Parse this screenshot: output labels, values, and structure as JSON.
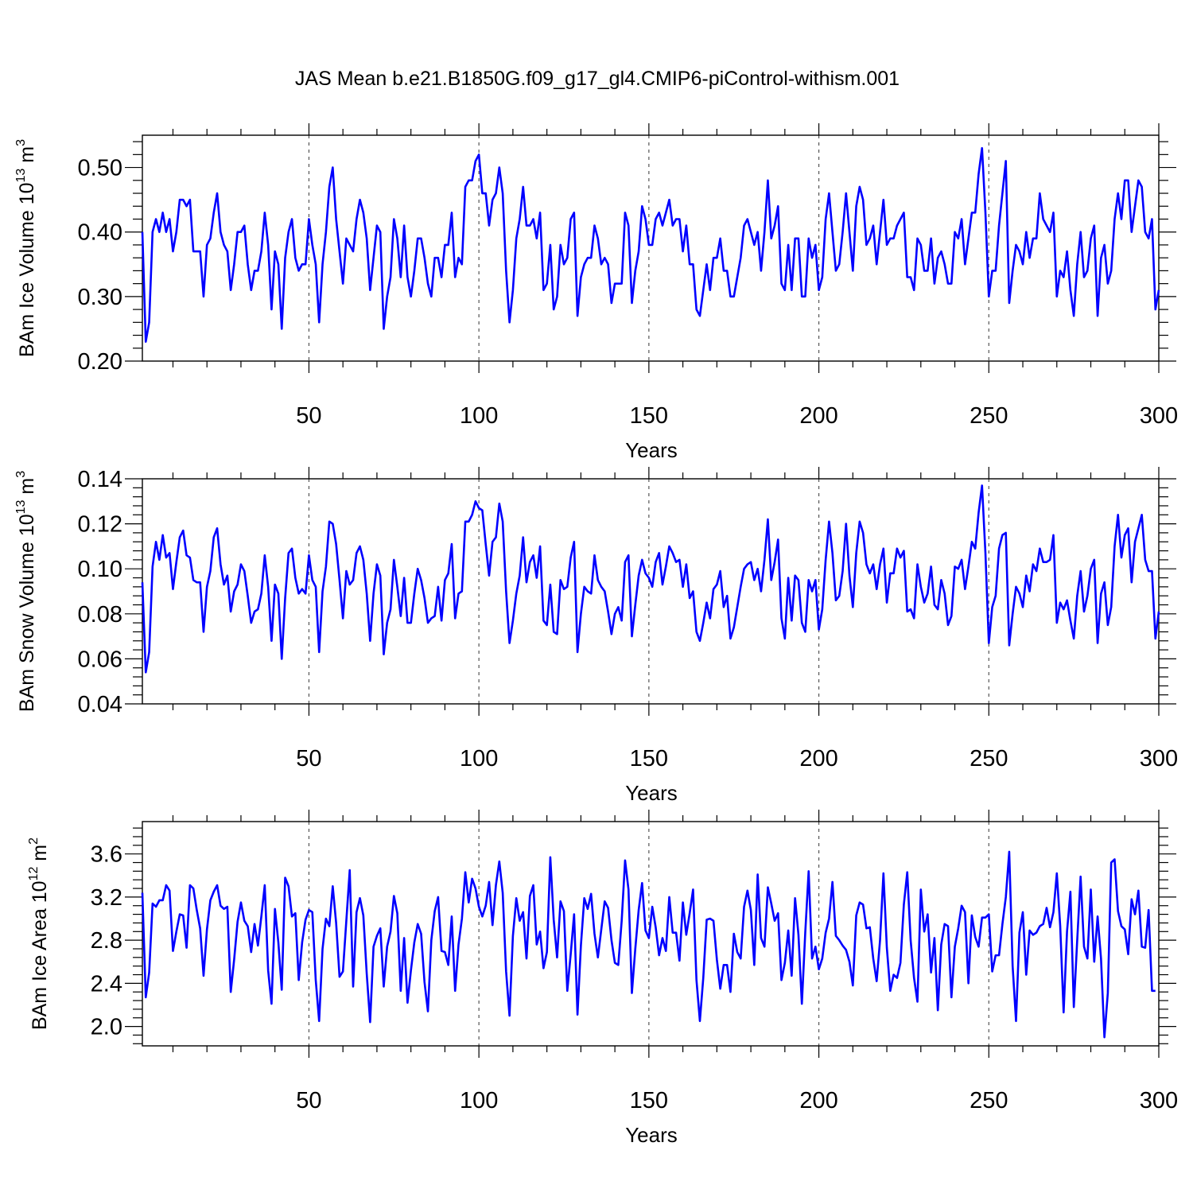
{
  "title": "JAS Mean b.e21.B1850G.f09_g17_gl4.CMIP6-piControl-withism.001",
  "colors": {
    "series": "#0000ff",
    "axis": "#000000",
    "refline": "#555555"
  },
  "chart_data": [
    {
      "type": "line",
      "ylabel": {
        "prefix": "BAm Ice Volume 10",
        "exp": "13",
        "unit": " m",
        "unit_exp": "3"
      },
      "xlabel": "Years",
      "xlim": [
        1,
        300
      ],
      "ylim": [
        0.2,
        0.55
      ],
      "xticks": [
        "50",
        "100",
        "150",
        "200",
        "250",
        "300"
      ],
      "yticks": [
        "0.20",
        "0.30",
        "0.40",
        "0.50"
      ],
      "ref_lines_x": [
        50,
        100,
        150,
        200,
        250
      ],
      "x_start": 1,
      "values": [
        0.4,
        0.23,
        0.26,
        0.4,
        0.42,
        0.4,
        0.43,
        0.4,
        0.42,
        0.37,
        0.4,
        0.45,
        0.45,
        0.44,
        0.45,
        0.37,
        0.37,
        0.37,
        0.3,
        0.38,
        0.39,
        0.43,
        0.46,
        0.4,
        0.38,
        0.37,
        0.31,
        0.35,
        0.4,
        0.4,
        0.41,
        0.35,
        0.31,
        0.34,
        0.34,
        0.37,
        0.43,
        0.38,
        0.28,
        0.37,
        0.35,
        0.25,
        0.36,
        0.4,
        0.42,
        0.36,
        0.34,
        0.35,
        0.35,
        0.42,
        0.38,
        0.35,
        0.26,
        0.35,
        0.4,
        0.47,
        0.5,
        0.42,
        0.37,
        0.32,
        0.39,
        0.38,
        0.37,
        0.42,
        0.45,
        0.43,
        0.39,
        0.31,
        0.36,
        0.41,
        0.4,
        0.25,
        0.3,
        0.33,
        0.42,
        0.39,
        0.33,
        0.41,
        0.33,
        0.3,
        0.34,
        0.39,
        0.39,
        0.36,
        0.32,
        0.3,
        0.36,
        0.36,
        0.33,
        0.38,
        0.38,
        0.43,
        0.33,
        0.36,
        0.35,
        0.47,
        0.48,
        0.48,
        0.51,
        0.52,
        0.46,
        0.46,
        0.41,
        0.45,
        0.46,
        0.5,
        0.46,
        0.34,
        0.26,
        0.31,
        0.39,
        0.42,
        0.47,
        0.41,
        0.41,
        0.42,
        0.39,
        0.43,
        0.31,
        0.32,
        0.38,
        0.28,
        0.3,
        0.38,
        0.35,
        0.36,
        0.42,
        0.43,
        0.27,
        0.33,
        0.35,
        0.36,
        0.36,
        0.41,
        0.39,
        0.35,
        0.36,
        0.35,
        0.29,
        0.32,
        0.32,
        0.32,
        0.43,
        0.41,
        0.29,
        0.34,
        0.37,
        0.44,
        0.42,
        0.38,
        0.38,
        0.42,
        0.43,
        0.41,
        0.43,
        0.45,
        0.41,
        0.42,
        0.42,
        0.37,
        0.41,
        0.35,
        0.35,
        0.28,
        0.27,
        0.31,
        0.35,
        0.31,
        0.36,
        0.36,
        0.39,
        0.34,
        0.34,
        0.3,
        0.3,
        0.33,
        0.36,
        0.41,
        0.42,
        0.4,
        0.38,
        0.4,
        0.34,
        0.4,
        0.48,
        0.39,
        0.41,
        0.44,
        0.32,
        0.31,
        0.38,
        0.31,
        0.39,
        0.39,
        0.3,
        0.3,
        0.39,
        0.36,
        0.38,
        0.31,
        0.33,
        0.42,
        0.46,
        0.4,
        0.34,
        0.35,
        0.4,
        0.46,
        0.4,
        0.34,
        0.44,
        0.47,
        0.45,
        0.38,
        0.39,
        0.41,
        0.35,
        0.4,
        0.45,
        0.38,
        0.39,
        0.39,
        0.41,
        0.42,
        0.43,
        0.33,
        0.33,
        0.31,
        0.39,
        0.38,
        0.34,
        0.34,
        0.39,
        0.32,
        0.36,
        0.37,
        0.35,
        0.32,
        0.32,
        0.4,
        0.39,
        0.42,
        0.35,
        0.39,
        0.43,
        0.43,
        0.49,
        0.53,
        0.43,
        0.3,
        0.34,
        0.34,
        0.41,
        0.46,
        0.51,
        0.29,
        0.34,
        0.38,
        0.37,
        0.35,
        0.4,
        0.36,
        0.39,
        0.39,
        0.46,
        0.42,
        0.41,
        0.4,
        0.43,
        0.3,
        0.34,
        0.33,
        0.37,
        0.31,
        0.27,
        0.35,
        0.4,
        0.33,
        0.34,
        0.39,
        0.41,
        0.27,
        0.36,
        0.38,
        0.32,
        0.34,
        0.42,
        0.46,
        0.42,
        0.48,
        0.48,
        0.4,
        0.44,
        0.48,
        0.47,
        0.4,
        0.39,
        0.42,
        0.28,
        0.31
      ]
    },
    {
      "type": "line",
      "ylabel": {
        "prefix": "BAm Snow Volume 10",
        "exp": "13",
        "unit": " m",
        "unit_exp": "3"
      },
      "xlabel": "Years",
      "xlim": [
        1,
        300
      ],
      "ylim": [
        0.04,
        0.14
      ],
      "xticks": [
        "50",
        "100",
        "150",
        "200",
        "250",
        "300"
      ],
      "yticks": [
        "0.04",
        "0.06",
        "0.08",
        "0.10",
        "0.12",
        "0.14"
      ],
      "ref_lines_x": [
        50,
        100,
        150,
        200,
        250
      ],
      "x_start": 1,
      "values": [
        0.094,
        0.054,
        0.063,
        0.101,
        0.112,
        0.104,
        0.115,
        0.105,
        0.107,
        0.091,
        0.103,
        0.114,
        0.117,
        0.106,
        0.105,
        0.095,
        0.094,
        0.094,
        0.072,
        0.092,
        0.099,
        0.114,
        0.118,
        0.102,
        0.093,
        0.097,
        0.081,
        0.09,
        0.093,
        0.102,
        0.099,
        0.088,
        0.076,
        0.081,
        0.082,
        0.089,
        0.106,
        0.092,
        0.068,
        0.093,
        0.089,
        0.06,
        0.087,
        0.107,
        0.109,
        0.096,
        0.089,
        0.091,
        0.089,
        0.106,
        0.095,
        0.092,
        0.063,
        0.09,
        0.101,
        0.121,
        0.12,
        0.111,
        0.095,
        0.078,
        0.099,
        0.093,
        0.095,
        0.107,
        0.11,
        0.104,
        0.089,
        0.068,
        0.089,
        0.102,
        0.097,
        0.062,
        0.076,
        0.082,
        0.104,
        0.092,
        0.079,
        0.096,
        0.076,
        0.076,
        0.089,
        0.1,
        0.095,
        0.087,
        0.076,
        0.078,
        0.079,
        0.092,
        0.077,
        0.095,
        0.098,
        0.111,
        0.078,
        0.089,
        0.09,
        0.121,
        0.121,
        0.124,
        0.13,
        0.127,
        0.126,
        0.111,
        0.097,
        0.112,
        0.114,
        0.129,
        0.121,
        0.09,
        0.067,
        0.077,
        0.089,
        0.097,
        0.114,
        0.094,
        0.103,
        0.106,
        0.096,
        0.11,
        0.077,
        0.075,
        0.093,
        0.072,
        0.071,
        0.095,
        0.091,
        0.092,
        0.105,
        0.112,
        0.063,
        0.08,
        0.092,
        0.09,
        0.089,
        0.106,
        0.095,
        0.092,
        0.09,
        0.081,
        0.071,
        0.08,
        0.083,
        0.077,
        0.103,
        0.106,
        0.07,
        0.084,
        0.097,
        0.104,
        0.098,
        0.096,
        0.092,
        0.103,
        0.107,
        0.093,
        0.101,
        0.11,
        0.107,
        0.103,
        0.104,
        0.092,
        0.102,
        0.087,
        0.09,
        0.072,
        0.068,
        0.076,
        0.085,
        0.078,
        0.091,
        0.093,
        0.099,
        0.083,
        0.088,
        0.069,
        0.074,
        0.083,
        0.092,
        0.1,
        0.102,
        0.103,
        0.095,
        0.1,
        0.09,
        0.104,
        0.122,
        0.095,
        0.103,
        0.113,
        0.078,
        0.069,
        0.096,
        0.077,
        0.097,
        0.095,
        0.076,
        0.072,
        0.095,
        0.09,
        0.095,
        0.073,
        0.082,
        0.104,
        0.121,
        0.107,
        0.086,
        0.088,
        0.099,
        0.12,
        0.097,
        0.083,
        0.107,
        0.121,
        0.116,
        0.102,
        0.098,
        0.102,
        0.091,
        0.102,
        0.109,
        0.085,
        0.098,
        0.098,
        0.109,
        0.105,
        0.108,
        0.081,
        0.082,
        0.078,
        0.102,
        0.092,
        0.085,
        0.089,
        0.101,
        0.084,
        0.082,
        0.095,
        0.089,
        0.075,
        0.079,
        0.101,
        0.1,
        0.104,
        0.091,
        0.101,
        0.112,
        0.109,
        0.125,
        0.137,
        0.107,
        0.067,
        0.083,
        0.088,
        0.109,
        0.115,
        0.116,
        0.066,
        0.08,
        0.092,
        0.089,
        0.083,
        0.097,
        0.09,
        0.102,
        0.099,
        0.109,
        0.103,
        0.103,
        0.104,
        0.115,
        0.076,
        0.085,
        0.082,
        0.086,
        0.077,
        0.069,
        0.088,
        0.099,
        0.081,
        0.088,
        0.1,
        0.104,
        0.067,
        0.089,
        0.094,
        0.075,
        0.083,
        0.11,
        0.124,
        0.105,
        0.115,
        0.118,
        0.094,
        0.112,
        0.118,
        0.124,
        0.104,
        0.099,
        0.099,
        0.069,
        0.081
      ]
    },
    {
      "type": "line",
      "ylabel": {
        "prefix": "BAm Ice Area 10",
        "exp": "12",
        "unit": " m",
        "unit_exp": "2"
      },
      "xlabel": "Years",
      "xlim": [
        1,
        300
      ],
      "ylim": [
        1.82,
        3.9
      ],
      "xticks": [
        "50",
        "100",
        "150",
        "200",
        "250",
        "300"
      ],
      "yticks": [
        "2.0",
        "2.4",
        "2.8",
        "3.2",
        "3.6"
      ],
      "ref_lines_x": [
        50,
        100,
        150,
        200,
        250
      ],
      "x_start": 1,
      "values": [
        3.24,
        2.27,
        2.5,
        3.14,
        3.11,
        3.17,
        3.17,
        3.31,
        3.26,
        2.7,
        2.88,
        3.04,
        3.03,
        2.73,
        3.31,
        3.28,
        3.08,
        2.91,
        2.47,
        2.9,
        3.17,
        3.25,
        3.31,
        3.12,
        3.09,
        3.11,
        2.32,
        2.62,
        2.97,
        3.15,
        2.98,
        2.93,
        2.69,
        2.95,
        2.75,
        3.02,
        3.31,
        2.52,
        2.21,
        3.09,
        2.78,
        2.34,
        3.38,
        3.3,
        3.02,
        3.05,
        2.43,
        2.78,
        2.99,
        3.08,
        3.06,
        2.43,
        2.05,
        2.72,
        3.0,
        2.93,
        3.3,
        2.96,
        2.46,
        2.51,
        2.98,
        3.45,
        2.37,
        3.06,
        3.19,
        3.03,
        2.49,
        2.04,
        2.74,
        2.84,
        2.91,
        2.37,
        2.74,
        2.88,
        3.21,
        3.05,
        2.33,
        2.82,
        2.22,
        2.52,
        2.78,
        2.95,
        2.86,
        2.41,
        2.14,
        2.8,
        3.07,
        3.2,
        2.7,
        2.69,
        2.57,
        3.02,
        2.33,
        2.76,
        3.0,
        3.43,
        3.15,
        3.37,
        3.28,
        3.11,
        3.02,
        3.12,
        3.34,
        2.94,
        3.31,
        3.53,
        3.24,
        2.51,
        2.1,
        2.84,
        3.19,
        2.98,
        3.06,
        2.63,
        3.21,
        3.31,
        2.76,
        2.88,
        2.54,
        2.69,
        3.57,
        2.99,
        2.64,
        3.16,
        3.07,
        2.33,
        2.67,
        3.04,
        2.11,
        2.75,
        3.19,
        3.09,
        3.23,
        2.86,
        2.64,
        2.9,
        3.16,
        3.1,
        2.8,
        2.59,
        2.57,
        2.98,
        3.54,
        3.27,
        2.31,
        2.72,
        3.08,
        3.33,
        2.89,
        2.82,
        3.11,
        2.92,
        2.66,
        2.82,
        2.7,
        3.2,
        2.87,
        2.87,
        2.61,
        3.15,
        2.85,
        3.05,
        3.27,
        2.43,
        2.05,
        2.45,
        2.99,
        3.0,
        2.98,
        2.62,
        2.35,
        2.57,
        2.57,
        2.32,
        2.86,
        2.69,
        2.63,
        3.11,
        3.26,
        3.08,
        2.57,
        3.41,
        2.82,
        2.74,
        3.29,
        3.14,
        2.98,
        3.05,
        2.43,
        2.59,
        2.89,
        2.47,
        3.19,
        2.85,
        2.21,
        2.87,
        3.44,
        2.63,
        2.74,
        2.53,
        2.63,
        2.87,
        3.0,
        3.34,
        2.84,
        2.8,
        2.75,
        2.71,
        2.6,
        2.38,
        3.03,
        3.15,
        3.13,
        2.91,
        2.92,
        2.63,
        2.42,
        2.8,
        3.42,
        2.73,
        2.33,
        2.48,
        2.45,
        2.59,
        3.13,
        3.43,
        2.8,
        2.45,
        2.23,
        3.27,
        2.88,
        3.04,
        2.5,
        2.82,
        2.15,
        2.76,
        2.95,
        2.93,
        2.27,
        2.74,
        2.91,
        3.12,
        3.06,
        2.4,
        3.03,
        2.83,
        2.74,
        3.01,
        3.01,
        3.04,
        2.51,
        2.66,
        2.66,
        2.95,
        3.2,
        3.62,
        2.56,
        2.05,
        2.87,
        3.06,
        2.48,
        2.89,
        2.85,
        2.87,
        2.93,
        2.95,
        3.1,
        2.92,
        3.06,
        3.42,
        2.93,
        2.13,
        2.88,
        3.25,
        2.18,
        2.8,
        3.39,
        2.74,
        2.63,
        3.27,
        2.6,
        3.02,
        2.63,
        1.9,
        2.31,
        3.52,
        3.55,
        3.07,
        2.93,
        2.9,
        2.67,
        3.18,
        3.04,
        3.26,
        2.74,
        2.73,
        3.08,
        2.33,
        2.33
      ]
    }
  ]
}
